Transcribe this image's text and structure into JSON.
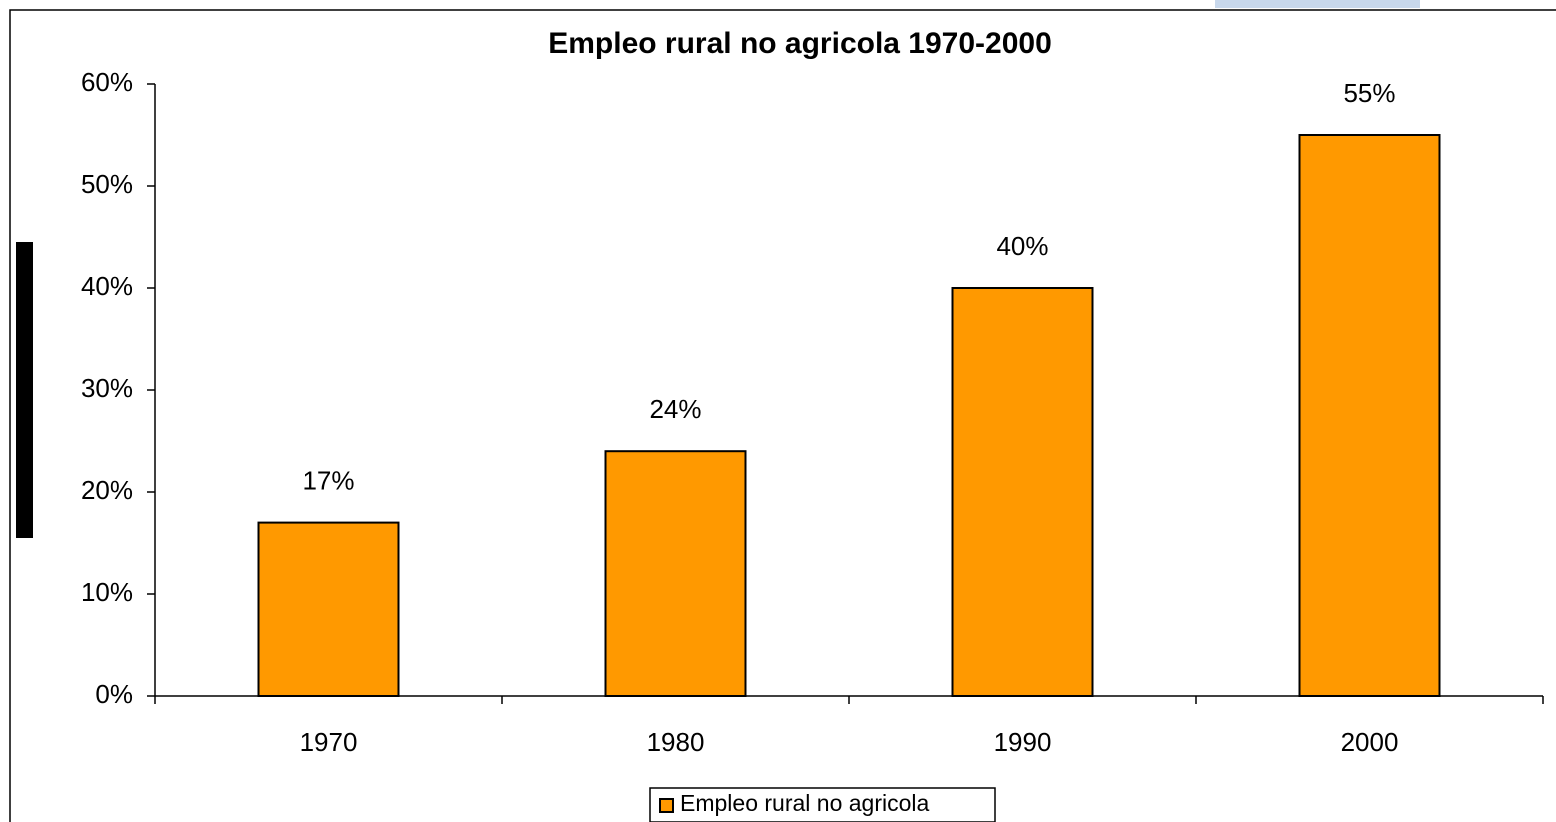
{
  "chart_data": {
    "type": "bar",
    "title": "Empleo rural no agricola 1970-2000",
    "categories": [
      "1970",
      "1980",
      "1990",
      "2000"
    ],
    "series": [
      {
        "name": "Empleo rural no agricola",
        "color": "#ff9900",
        "values": [
          17,
          24,
          40,
          55
        ],
        "value_labels": [
          "17%",
          "24%",
          "40%",
          "55%"
        ]
      }
    ],
    "ylim": [
      0,
      60
    ],
    "yticks": [
      {
        "value": 0,
        "label": "0%"
      },
      {
        "value": 10,
        "label": "10%"
      },
      {
        "value": 20,
        "label": "20%"
      },
      {
        "value": 30,
        "label": "30%"
      },
      {
        "value": 40,
        "label": "40%"
      },
      {
        "value": 50,
        "label": "50%"
      },
      {
        "value": 60,
        "label": "60%"
      }
    ],
    "grid": false,
    "legend": "bottom"
  }
}
